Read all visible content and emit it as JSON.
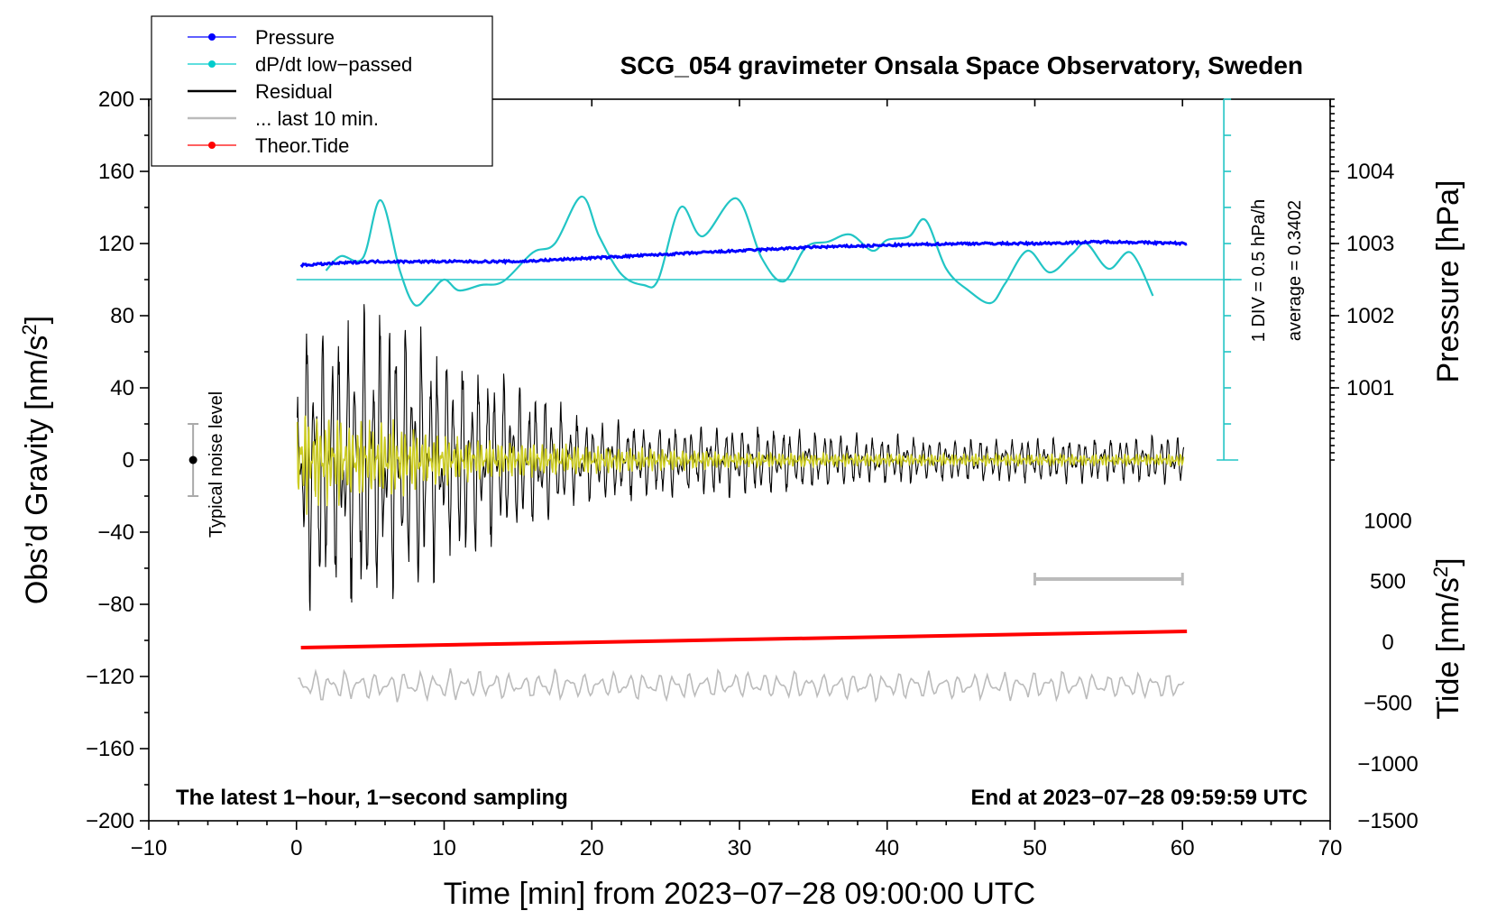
{
  "chart_data": {
    "type": "line",
    "title": "SCG_054 gravimeter Onsala Space Observatory, Sweden",
    "xlabel": "Time [min] from 2023−07−28 09:00:00 UTC",
    "ylabel_left_main": "Obs’d Gravity [nm/s",
    "ylabel_left_sup": "2",
    "ylabel_left_tail": "]",
    "ylabel_right_top": "Pressure [hPa]",
    "ylabel_right_bottom_main": "Tide [nm/s",
    "ylabel_right_bottom_sup": "2",
    "ylabel_right_bottom_tail": "]",
    "xlim": [
      -10,
      70
    ],
    "ylim": [
      -200,
      200
    ],
    "x_ticks": [
      -10,
      0,
      10,
      20,
      30,
      40,
      50,
      60,
      70
    ],
    "x_tick_labels": [
      "−10",
      "0",
      "10",
      "20",
      "30",
      "40",
      "50",
      "60",
      "70"
    ],
    "y_ticks": [
      -200,
      -160,
      -120,
      -80,
      -40,
      0,
      40,
      80,
      120,
      160,
      200
    ],
    "y_tick_labels": [
      "−200",
      "−160",
      "−120",
      "−80",
      "−40",
      "0",
      "40",
      "80",
      "120",
      "160",
      "200"
    ],
    "pressure_axis": {
      "ticks": [
        1001,
        1002,
        1003,
        1004
      ],
      "tick_labels": [
        "1001",
        "1002",
        "1003",
        "1004"
      ],
      "left_equiv": [
        40,
        80,
        120,
        160
      ]
    },
    "tide_axis": {
      "ticks": [
        1000,
        500,
        0,
        -500,
        -1000,
        -1500
      ],
      "tick_labels": [
        "1000",
        "500",
        "0",
        "−500",
        "−1000",
        "−1500"
      ],
      "left_equiv": [
        -33.7,
        -67.3,
        -101,
        -134.7,
        -168.4,
        -200
      ]
    },
    "legend": [
      {
        "label": "Pressure",
        "color": "#0000ff",
        "marker": true
      },
      {
        "label": "dP/dt low−passed",
        "color": "#00cccc",
        "marker": true
      },
      {
        "label": "Residual",
        "color": "#000000",
        "marker": false
      },
      {
        "label": "... last 10 min.",
        "color": "#bbbbbb",
        "marker": false
      },
      {
        "label": "Theor.Tide",
        "color": "#ff0000",
        "marker": true
      }
    ],
    "series": [
      {
        "name": "Pressure",
        "color": "#0000ff",
        "x": [
          0.3,
          5,
          10,
          15,
          20,
          25,
          30,
          35,
          40,
          45,
          50,
          55,
          60.3
        ],
        "y": [
          108,
          110,
          110,
          110,
          112,
          114,
          116,
          118,
          119,
          120,
          120,
          121,
          120
        ]
      },
      {
        "name": "dP/dt low-passed",
        "color": "#22c5c5",
        "x": [
          2,
          3,
          4.5,
          5.7,
          7,
          8,
          9,
          10,
          11,
          12.5,
          14,
          16,
          17.5,
          19.3,
          20.5,
          22,
          23.5,
          24.5,
          26,
          27.5,
          29.8,
          31.5,
          33,
          34.5,
          36,
          37.5,
          39,
          40,
          41.5,
          42.6,
          44,
          45.5,
          47,
          48,
          49.5,
          51,
          52.5,
          53.5,
          55,
          56.5,
          58
        ],
        "y": [
          105,
          113,
          112,
          144,
          105,
          86,
          92,
          100,
          94,
          97,
          99,
          115,
          120,
          146,
          124,
          103,
          97,
          100,
          140,
          124,
          145,
          112,
          99,
          118,
          121,
          125,
          116,
          122,
          124,
          133,
          106,
          94,
          87,
          98,
          116,
          104,
          114,
          120,
          106,
          115,
          91
        ]
      },
      {
        "name": "Residual",
        "color": "#000000",
        "amplitude_envelope": {
          "x": [
            0,
            1,
            3,
            5,
            7,
            10,
            15,
            20,
            30,
            40,
            50,
            60
          ],
          "amp": [
            40,
            80,
            70,
            80,
            75,
            55,
            40,
            20,
            18,
            12,
            11,
            12
          ]
        }
      },
      {
        "name": "Filtered residual",
        "color": "#cccc22",
        "amplitude_envelope": {
          "x": [
            0,
            2,
            5,
            7,
            10,
            15,
            20,
            30,
            40,
            50,
            60
          ],
          "amp": [
            28,
            22,
            20,
            18,
            12,
            9,
            7,
            4,
            3,
            3,
            3
          ]
        }
      },
      {
        "name": "Theor.Tide",
        "color": "#ff0000",
        "x": [
          0.3,
          60.3
        ],
        "y": [
          -104,
          -95
        ]
      },
      {
        "name": "... last 10 min. (repeated)",
        "color": "#bbbbbb",
        "center": -125,
        "amplitude": 8
      }
    ],
    "dpdt_scale": {
      "label_div": "1 DIV = 0.5 hPa/h",
      "label_avg": "average = 0.3402",
      "baseline": 100
    },
    "noise_bar": {
      "label": "Typical noise level",
      "x": -7,
      "center": 0,
      "half_range": 20
    },
    "ten_min_bar": {
      "x_start": 50,
      "x_end": 60,
      "y": -66
    },
    "note_left": "The latest 1−hour, 1−second sampling",
    "note_right": "End at 2023−07−28 09:59:59 UTC"
  }
}
